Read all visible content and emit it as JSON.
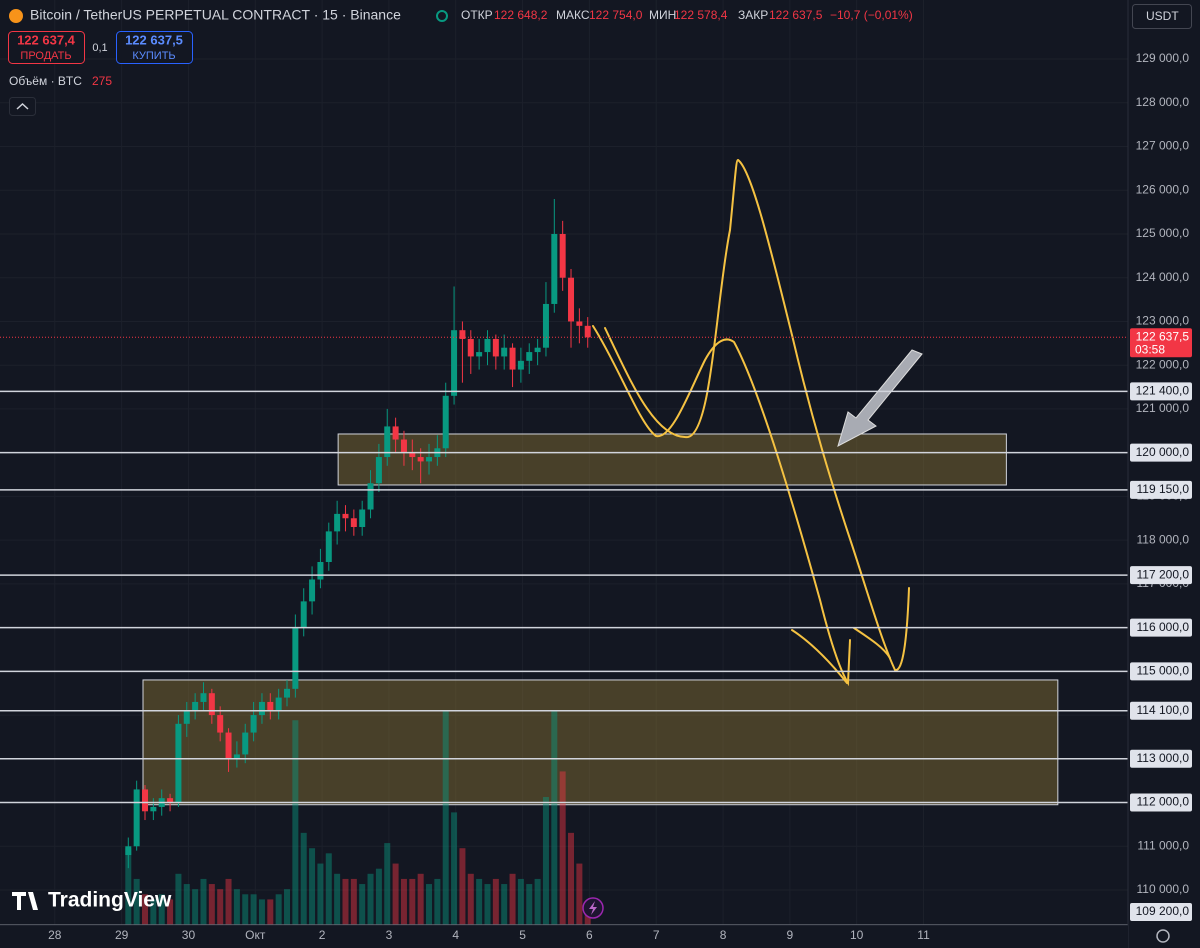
{
  "header": {
    "open_label": "ОТКР",
    "open": "122 648,2",
    "high_label": "МАКС",
    "high": "122 754,0",
    "low_label": "МИН",
    "low": "122 578,4",
    "close_label": "ЗАКР",
    "close": "122 637,5",
    "change": "−10,7 (−0,01%)"
  },
  "buttons": {
    "sell_price": "122 637,4",
    "sell": "ПРОДАТЬ",
    "spread": "0,1",
    "buy_price": "122 637,5",
    "buy": "КУПИТЬ"
  },
  "currency": "USDT",
  "logo": "TradingView",
  "chart_data": {
    "type": "candlestick",
    "title": "Bitcoin / TetherUS PERPETUAL CONTRACT · 15 · Binance",
    "x": [
      1.1,
      1.225,
      1.35,
      1.475,
      1.6,
      1.725,
      1.85,
      1.975,
      2.1,
      2.225,
      2.35,
      2.475,
      2.6,
      2.725,
      2.85,
      2.975,
      3.1,
      3.225,
      3.35,
      3.475,
      3.6,
      3.725,
      3.85,
      3.975,
      4.1,
      4.225,
      4.35,
      4.475,
      4.6,
      4.725,
      4.85,
      4.975,
      5.1,
      5.225,
      5.35,
      5.475,
      5.6,
      5.725,
      5.85,
      5.975,
      6.1,
      6.225,
      6.35,
      6.475,
      6.6,
      6.725,
      6.85,
      6.975,
      7.1,
      7.225,
      7.35,
      7.475,
      7.6,
      7.725,
      7.85,
      7.975
    ],
    "open": [
      110800,
      111000,
      112300,
      111800,
      111900,
      112100,
      112000,
      113800,
      114100,
      114300,
      114500,
      114000,
      113600,
      113000,
      113100,
      113600,
      114000,
      114300,
      114100,
      114400,
      114600,
      116000,
      116600,
      117100,
      117500,
      118200,
      118600,
      118500,
      118300,
      118700,
      119300,
      119900,
      120600,
      120300,
      120000,
      119900,
      119800,
      119900,
      120100,
      121300,
      122800,
      122600,
      122200,
      122300,
      122600,
      122200,
      122400,
      121900,
      122100,
      122300,
      122400,
      123400,
      125000,
      124000,
      123000,
      122900
    ],
    "high": [
      111200,
      112500,
      112400,
      112100,
      112300,
      112200,
      114000,
      114300,
      114500,
      114750,
      114600,
      114200,
      113700,
      113400,
      113800,
      114300,
      114500,
      114500,
      114600,
      114800,
      116300,
      116900,
      117400,
      117800,
      118400,
      118900,
      118800,
      118700,
      118900,
      119600,
      120200,
      121000,
      120800,
      120500,
      120300,
      120100,
      120200,
      120400,
      121600,
      123800,
      123000,
      122800,
      122600,
      122800,
      122700,
      122700,
      122500,
      122400,
      122500,
      122600,
      123900,
      125800,
      125300,
      124200,
      123300,
      123100
    ],
    "low": [
      110500,
      110900,
      111600,
      111600,
      111700,
      111800,
      111900,
      113500,
      113900,
      114100,
      113800,
      113400,
      112700,
      112800,
      112900,
      113400,
      113800,
      113900,
      113900,
      114200,
      114400,
      115800,
      116300,
      116900,
      117300,
      117900,
      118200,
      118100,
      118100,
      118500,
      119100,
      119700,
      120000,
      119700,
      119600,
      119300,
      119500,
      119700,
      119900,
      121100,
      121600,
      121800,
      121900,
      122000,
      121900,
      121900,
      121500,
      121600,
      121800,
      122000,
      122200,
      123200,
      123700,
      122400,
      122500,
      122400
    ],
    "close": [
      111000,
      112300,
      111800,
      111900,
      112100,
      112000,
      113800,
      114100,
      114300,
      114500,
      114000,
      113600,
      113000,
      113100,
      113600,
      114000,
      114300,
      114100,
      114400,
      114600,
      116000,
      116600,
      117100,
      117500,
      118200,
      118600,
      118500,
      118300,
      118700,
      119300,
      119900,
      120600,
      120300,
      120000,
      119900,
      119800,
      119900,
      120100,
      121300,
      122800,
      122600,
      122200,
      122300,
      122600,
      122200,
      122400,
      121900,
      122100,
      122300,
      122400,
      123400,
      125000,
      124000,
      123000,
      122900,
      122637.5
    ],
    "volume": {
      "name": "Объём · BTC",
      "values": [
        1500,
        900,
        600,
        500,
        600,
        500,
        1000,
        800,
        700,
        900,
        800,
        700,
        900,
        700,
        600,
        600,
        500,
        500,
        600,
        700,
        4000,
        1800,
        1500,
        1200,
        1400,
        1000,
        900,
        900,
        800,
        1000,
        1100,
        1600,
        1200,
        900,
        900,
        1000,
        800,
        900,
        4200,
        2200,
        1500,
        1000,
        900,
        800,
        900,
        800,
        1000,
        900,
        800,
        900,
        2500,
        4200,
        3000,
        1800,
        1200,
        275
      ]
    },
    "up_color": "#089981",
    "down_color": "#f23645",
    "xlim": [
      -0.82,
      16.06
    ],
    "xticks": [
      {
        "value": 0,
        "label": "28"
      },
      {
        "value": 1,
        "label": "29"
      },
      {
        "value": 2,
        "label": "30"
      },
      {
        "value": 3,
        "label": "Окт"
      },
      {
        "value": 4,
        "label": "2"
      },
      {
        "value": 5,
        "label": "3"
      },
      {
        "value": 6,
        "label": "4"
      },
      {
        "value": 7,
        "label": "5"
      },
      {
        "value": 8,
        "label": "6"
      },
      {
        "value": 9,
        "label": "7"
      },
      {
        "value": 10,
        "label": "8"
      },
      {
        "value": 11,
        "label": "9"
      },
      {
        "value": 12,
        "label": "10"
      },
      {
        "value": 13,
        "label": "11"
      }
    ],
    "ylim": [
      109200,
      130350
    ],
    "yticks": [
      {
        "value": 110000,
        "label": "110 000,0"
      },
      {
        "value": 111000,
        "label": "111 000,0"
      },
      {
        "value": 112000,
        "label": "112 000,0"
      },
      {
        "value": 113000,
        "label": "113 000,0"
      },
      {
        "value": 114000,
        "label": "114 000,0"
      },
      {
        "value": 115000,
        "label": "115 000,0"
      },
      {
        "value": 116000,
        "label": "116 000,0"
      },
      {
        "value": 117000,
        "label": "117 000,0"
      },
      {
        "value": 118000,
        "label": "118 000,0"
      },
      {
        "value": 119000,
        "label": "119 000,0"
      },
      {
        "value": 120000,
        "label": "120 000,0"
      },
      {
        "value": 121000,
        "label": "121 000,0"
      },
      {
        "value": 122000,
        "label": "122 000,0"
      },
      {
        "value": 123000,
        "label": "123 000,0"
      },
      {
        "value": 124000,
        "label": "124 000,0"
      },
      {
        "value": 125000,
        "label": "125 000,0"
      },
      {
        "value": 126000,
        "label": "126 000,0"
      },
      {
        "value": 127000,
        "label": "127 000,0"
      },
      {
        "value": 128000,
        "label": "128 000,0"
      },
      {
        "value": 129000,
        "label": "129 000,0"
      }
    ],
    "levels": [
      {
        "value": 121400,
        "label": "121 400,0"
      },
      {
        "value": 120000,
        "label": "120 000,0"
      },
      {
        "value": 119150,
        "label": "119 150,0"
      },
      {
        "value": 117200,
        "label": "117 200,0"
      },
      {
        "value": 116000,
        "label": "116 000,0"
      },
      {
        "value": 115000,
        "label": "115 000,0"
      },
      {
        "value": 114100,
        "label": "114 100,0"
      },
      {
        "value": 113000,
        "label": "113 000,0"
      },
      {
        "value": 112000,
        "label": "112 000,0"
      },
      {
        "value": 109200,
        "label": "109 200,0"
      }
    ],
    "zones": [
      {
        "x": [
          4.24,
          14.24
        ],
        "y": [
          120427,
          119261
        ],
        "color": "#8a7434"
      },
      {
        "x": [
          1.32,
          15.01
        ],
        "y": [
          114803,
          111950
        ],
        "color": "#8a7434"
      }
    ],
    "last_price": {
      "value": 122637.5,
      "label": "122 637,5",
      "timer": "03:58"
    },
    "grid": true
  }
}
